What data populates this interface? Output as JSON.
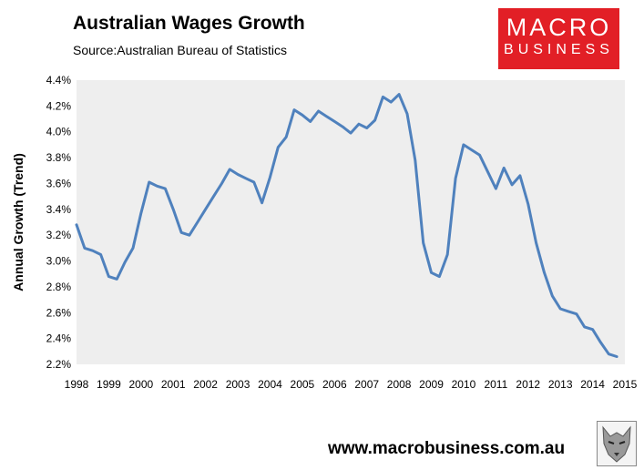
{
  "header": {
    "title": "Australian Wages Growth",
    "source": "Source:Australian Bureau of Statistics"
  },
  "logo": {
    "line1": "MACRO",
    "line2": "BUSINESS",
    "color": "#e21f26"
  },
  "footer": {
    "website": "www.macrobusiness.com.au",
    "badge_icon": "wolf-icon"
  },
  "chart_data": {
    "type": "line",
    "title": "Australian Wages Growth",
    "xlabel": "",
    "ylabel": "Annual Growth (Trend)",
    "xlim": [
      1998,
      2015
    ],
    "ylim": [
      2.2,
      4.4
    ],
    "y_ticks": [
      "2.2%",
      "2.4%",
      "2.6%",
      "2.8%",
      "3.0%",
      "3.2%",
      "3.4%",
      "3.6%",
      "3.8%",
      "4.0%",
      "4.2%",
      "4.4%"
    ],
    "x_ticks": [
      "1998",
      "1999",
      "2000",
      "2001",
      "2002",
      "2003",
      "2004",
      "2005",
      "2006",
      "2007",
      "2008",
      "2009",
      "2010",
      "2011",
      "2012",
      "2013",
      "2014",
      "2015"
    ],
    "grid": false,
    "background": "#eeeeee",
    "line_color": "#4f81bd",
    "series": [
      {
        "x": [
          1998.0,
          1998.25,
          1998.5,
          1998.75,
          1999.0,
          1999.25,
          1999.5,
          1999.75,
          2000.0,
          2000.25,
          2000.5,
          2000.75,
          2001.0,
          2001.25,
          2001.5,
          2001.75,
          2002.0,
          2002.25,
          2002.5,
          2002.75,
          2003.0,
          2003.25,
          2003.5,
          2003.75,
          2004.0,
          2004.25,
          2004.5,
          2004.75,
          2005.0,
          2005.25,
          2005.5,
          2005.75,
          2006.0,
          2006.25,
          2006.5,
          2006.75,
          2007.0,
          2007.25,
          2007.5,
          2007.75,
          2008.0,
          2008.25,
          2008.5,
          2008.75,
          2009.0,
          2009.25,
          2009.5,
          2009.75,
          2010.0,
          2010.25,
          2010.5,
          2010.75,
          2011.0,
          2011.25,
          2011.5,
          2011.75,
          2012.0,
          2012.25,
          2012.5,
          2012.75,
          2013.0,
          2013.25,
          2013.5,
          2013.75,
          2014.0,
          2014.25,
          2014.5,
          2014.75
        ],
        "values": [
          3.28,
          3.1,
          3.08,
          3.05,
          2.88,
          2.86,
          2.99,
          3.1,
          3.37,
          3.61,
          3.58,
          3.56,
          3.4,
          3.22,
          3.2,
          3.3,
          3.4,
          3.5,
          3.6,
          3.71,
          3.67,
          3.64,
          3.61,
          3.45,
          3.65,
          3.88,
          3.96,
          4.17,
          4.13,
          4.08,
          4.16,
          4.12,
          4.08,
          4.04,
          3.99,
          4.06,
          4.03,
          4.09,
          4.27,
          4.23,
          4.29,
          4.14,
          3.78,
          3.14,
          2.91,
          2.88,
          3.05,
          3.64,
          3.9,
          3.86,
          3.82,
          3.69,
          3.56,
          3.72,
          3.59,
          3.66,
          3.44,
          3.14,
          2.91,
          2.73,
          2.63,
          2.61,
          2.59,
          2.49,
          2.47,
          2.37,
          2.28,
          2.26
        ]
      }
    ]
  }
}
